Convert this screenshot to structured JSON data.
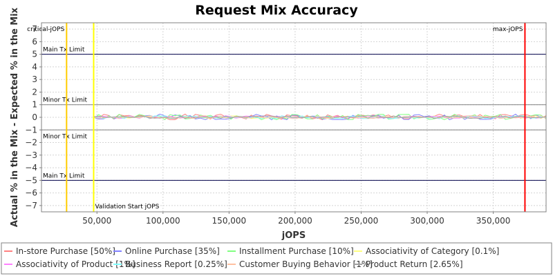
{
  "chart_data": {
    "type": "line",
    "title": "Request Mix Accuracy",
    "xlabel": "jOPS",
    "ylabel": "Actual % in the Mix - Expected % in the Mix",
    "xlim": [
      8000,
      390000
    ],
    "ylim": [
      -7.5,
      7.5
    ],
    "x_ticks": [
      50000,
      100000,
      150000,
      200000,
      250000,
      300000,
      350000
    ],
    "x_tick_labels": [
      "50,000",
      "100,000",
      "150,000",
      "200,000",
      "250,000",
      "300,000",
      "350,000"
    ],
    "y_ticks": [
      -7,
      -6,
      -5,
      -4,
      -3,
      -2,
      -1,
      0,
      1,
      2,
      3,
      4,
      5,
      6,
      7
    ],
    "y_tick_labels": [
      "−7",
      "−6",
      "−5",
      "−4",
      "−3",
      "−2",
      "−1",
      "0",
      "1",
      "2",
      "3",
      "4",
      "5",
      "6",
      "7"
    ],
    "grid": true,
    "legend_position": "bottom",
    "horizontal_lines": [
      {
        "y": 5,
        "label": "Main Tx Limit",
        "color": "#00004a",
        "label_side": "above"
      },
      {
        "y": 1,
        "label": "Minor Tx Limit",
        "color": "#808080",
        "label_side": "above"
      },
      {
        "y": -1,
        "label": "Minor Tx Limit",
        "color": "#808080",
        "label_side": "below"
      },
      {
        "y": -5,
        "label": "Main Tx Limit",
        "color": "#00004a",
        "label_side": "above"
      }
    ],
    "vertical_markers": [
      {
        "x": 27000,
        "label": "critical-jOPS",
        "color": "#ffcc00",
        "label_pos": "top-left"
      },
      {
        "x": 47500,
        "label": "Validation Start jOPS",
        "color": "#ffff00",
        "label_pos": "bottom-right"
      },
      {
        "x": 374000,
        "label": "max-jOPS",
        "color": "#ff0000",
        "label_pos": "top-left"
      }
    ],
    "series": [
      {
        "name": "In-store Purchase [50%]",
        "color": "#ff8080"
      },
      {
        "name": "Online Purchase [35%]",
        "color": "#8080ff"
      },
      {
        "name": "Installment Purchase [10%]",
        "color": "#80ff80"
      },
      {
        "name": "Associativity of Category [0.1%]",
        "color": "#ffff80"
      },
      {
        "name": "Associativity of Product [1%]",
        "color": "#ff80ff"
      },
      {
        "name": "Business Report [0.25%]",
        "color": "#80ffff"
      },
      {
        "name": "Customer Buying Behavior [1%]",
        "color": "#ffc0a0"
      },
      {
        "name": "Product Return [2.65%]",
        "color": "#a0a0a0"
      }
    ],
    "series_x_range": [
      47500,
      390000
    ],
    "series_points": 90,
    "series_y_range": [
      -0.2,
      0.25
    ]
  }
}
